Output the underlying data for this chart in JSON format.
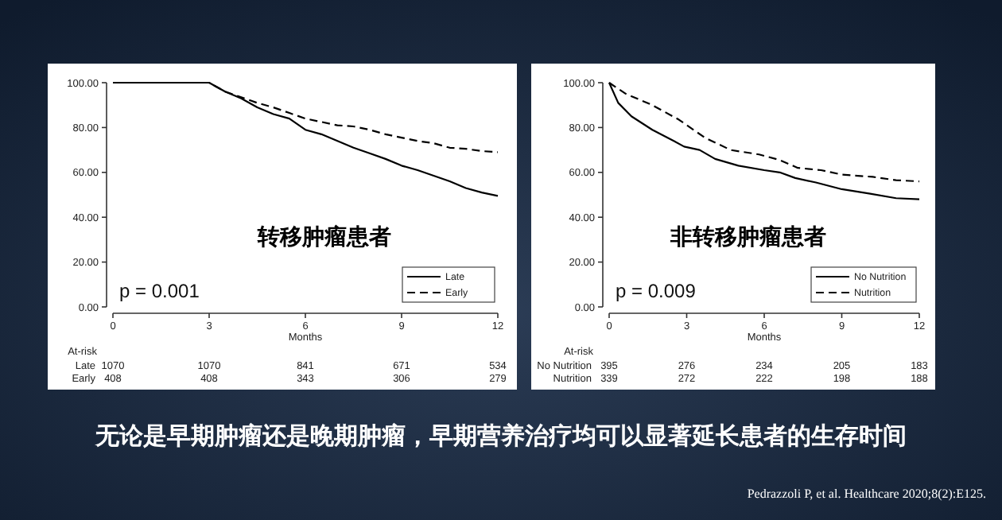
{
  "chart_data": [
    {
      "type": "line",
      "xlabel": "Months",
      "xlim": [
        0,
        12
      ],
      "xticks": [
        0,
        3,
        6,
        9,
        12
      ],
      "ylim": [
        0,
        100
      ],
      "yticks": [
        {
          "value": 0,
          "label": "0.00"
        },
        {
          "value": 20,
          "label": "20.00"
        },
        {
          "value": 40,
          "label": "40.00"
        },
        {
          "value": 60,
          "label": "60.00"
        },
        {
          "value": 80,
          "label": "80.00"
        },
        {
          "value": 100,
          "label": "100.00"
        }
      ],
      "grid": false,
      "legend": "bottom right",
      "series": [
        {
          "name": "Late",
          "color": "#000000",
          "line_style": "solid",
          "x": [
            0,
            3,
            3.5,
            4,
            4.5,
            5,
            5.5,
            6,
            6.5,
            7,
            7.5,
            8,
            8.5,
            9,
            9.5,
            10,
            10.5,
            11,
            11.5,
            12
          ],
          "values": [
            100,
            100,
            96,
            93,
            89,
            86,
            84,
            79,
            77,
            74,
            71,
            68.5,
            66,
            63,
            61,
            58.5,
            56,
            53,
            51,
            49.5
          ]
        },
        {
          "name": "Early",
          "color": "#000000",
          "line_style": "dashed",
          "x": [
            0,
            3,
            3.5,
            4,
            4.5,
            5,
            5.5,
            6,
            6.5,
            7,
            7.5,
            8,
            8.5,
            9,
            9.5,
            10,
            10.5,
            11,
            11.5,
            12
          ],
          "values": [
            100,
            100,
            96,
            93.5,
            91,
            89,
            86.5,
            84,
            82.5,
            81,
            80.5,
            79,
            77,
            75.5,
            74,
            73,
            71,
            70.5,
            69.5,
            69
          ]
        }
      ],
      "annotations": [
        "p = 0.001",
        "转移肿瘤患者",
        "At-risk",
        "Late",
        "1070",
        "1070",
        "841",
        "671",
        "534",
        "Early",
        "408",
        "408",
        "343",
        "306",
        "279"
      ]
    },
    {
      "type": "line",
      "xlabel": "Months",
      "xlim": [
        0,
        12
      ],
      "xticks": [
        0,
        3,
        6,
        9,
        12
      ],
      "ylim": [
        0,
        100
      ],
      "yticks": [
        {
          "value": 0,
          "label": "0.00"
        },
        {
          "value": 20,
          "label": "20.00"
        },
        {
          "value": 40,
          "label": "40.00"
        },
        {
          "value": 60,
          "label": "60.00"
        },
        {
          "value": 80,
          "label": "80.00"
        },
        {
          "value": 100,
          "label": "100.00"
        }
      ],
      "grid": false,
      "legend": "bottom right",
      "series": [
        {
          "name": "No Nutrition",
          "color": "#000000",
          "line_style": "solid",
          "x": [
            0,
            0.35,
            0.86,
            1.67,
            2.5,
            2.9,
            3.5,
            4.1,
            5,
            6,
            6.6,
            7.2,
            8,
            9,
            10.1,
            11.1,
            12
          ],
          "values": [
            100,
            91,
            85,
            79,
            74,
            71.5,
            70,
            66,
            63,
            61,
            60,
            57.5,
            55.5,
            52.5,
            50.5,
            48.5,
            48
          ]
        },
        {
          "name": "Nutrition",
          "color": "#000000",
          "line_style": "dashed",
          "x": [
            0,
            0.65,
            1.67,
            2.7,
            3.7,
            4.7,
            5.8,
            6.6,
            7.3,
            8.2,
            9,
            10.2,
            11.1,
            12
          ],
          "values": [
            100,
            95,
            90,
            83.5,
            75.5,
            70,
            68,
            65.5,
            62,
            61,
            59,
            58,
            56.5,
            56
          ]
        }
      ],
      "annotations": [
        "p = 0.009",
        "非转移肿瘤患者",
        "At-risk",
        "No Nutrition",
        "395",
        "276",
        "234",
        "205",
        "183",
        "Nutrition",
        "339",
        "272",
        "222",
        "198",
        "188",
        "无论是早期肿瘤还是晚期肿瘤，早期营养治疗均可以显著延长患者的生存时间",
        "Pedrazzoli P, et al. Healthcare  2020;8(2):E125."
      ]
    }
  ]
}
